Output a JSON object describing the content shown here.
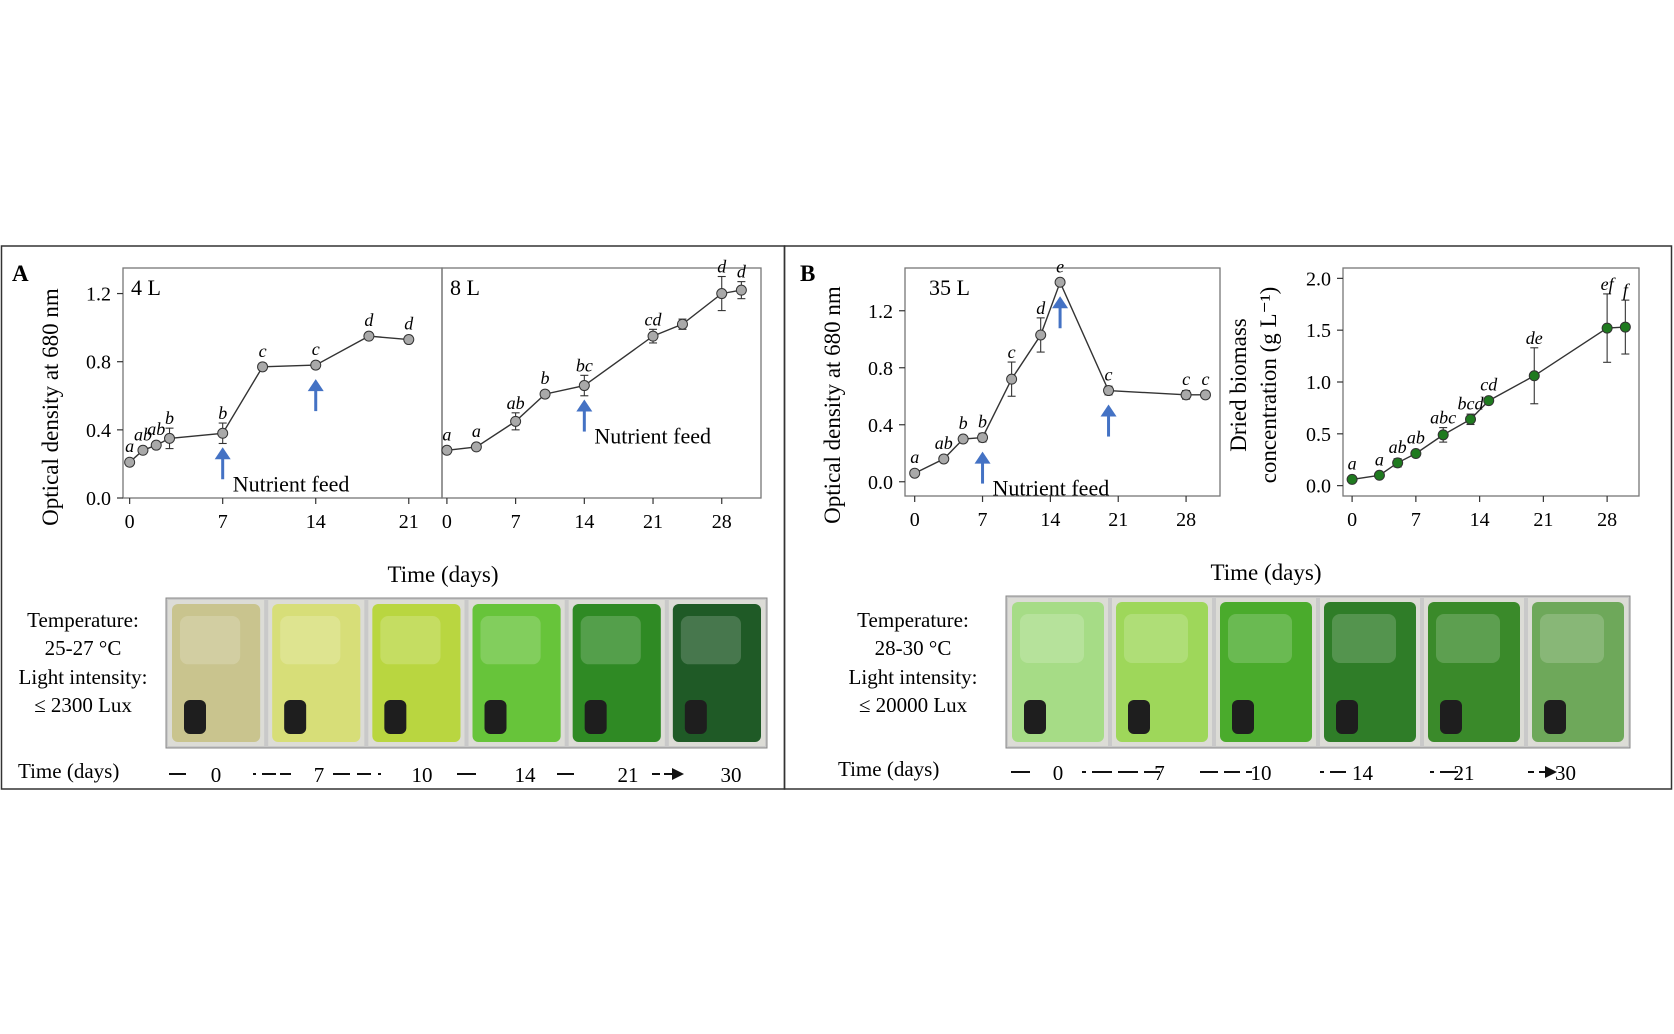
{
  "panels": {
    "a": {
      "letter": "A",
      "ylabel": "Optical density at 680 nm",
      "xlabel": "Time (days)",
      "temp_label": "Temperature:",
      "temp_value": "25-27 °C",
      "light_label": "Light intensity:",
      "light_value": "≤ 2300 Lux",
      "timeline_label": "Time (days)",
      "timeline_days": [
        "0",
        "7",
        "10",
        "14",
        "21",
        "30"
      ],
      "photo_colors": [
        "#c9c48e",
        "#d7de78",
        "#b9d640",
        "#67c43a",
        "#2f8a24",
        "#1f5a26"
      ]
    },
    "b": {
      "letter": "B",
      "ylabel": "Optical density at 680 nm",
      "ylabel2_line1": "Dried biomass",
      "ylabel2_line2": "concentration (g L⁻¹)",
      "xlabel": "Time (days)",
      "temp_label": "Temperature:",
      "temp_value": "28-30 °C",
      "light_label": "Light intensity:",
      "light_value": "≤ 20000 Lux",
      "timeline_label": "Time (days)",
      "timeline_days": [
        "0",
        "7",
        "10",
        "14",
        "21",
        "30"
      ],
      "photo_colors": [
        "#a6dc86",
        "#9ed75a",
        "#4aab2c",
        "#2f7d28",
        "#3a8a2a",
        "#6ea85a"
      ]
    }
  },
  "chart_data": [
    {
      "type": "line",
      "subplot_label": "4 L",
      "x": [
        0,
        1,
        2,
        3,
        7,
        10,
        14,
        18,
        21
      ],
      "y": [
        0.21,
        0.28,
        0.31,
        0.35,
        0.38,
        0.77,
        0.78,
        0.95,
        0.93
      ],
      "error": [
        0.02,
        0.02,
        0.02,
        0.06,
        0.06,
        0.02,
        0.02,
        0.02,
        0.02
      ],
      "letters": [
        "a",
        "ab",
        "ab",
        "b",
        "b",
        "c",
        "c",
        "d",
        "d"
      ],
      "xticks": [
        0,
        7,
        14,
        21
      ],
      "yticks": [
        0.0,
        0.4,
        0.8,
        1.2
      ],
      "xlim": [
        -0.5,
        23.5
      ],
      "ylim": [
        0,
        1.35
      ],
      "marker_color": "#a9a9a9",
      "arrows": [
        {
          "x": 7,
          "label": "Nutrient feed"
        },
        {
          "x": 14,
          "label": ""
        }
      ]
    },
    {
      "type": "line",
      "subplot_label": "8 L",
      "x": [
        0,
        3,
        7,
        10,
        14,
        21,
        24,
        28,
        30
      ],
      "y": [
        0.28,
        0.3,
        0.45,
        0.61,
        0.66,
        0.95,
        1.02,
        1.2,
        1.22
      ],
      "error": [
        0.02,
        0.02,
        0.05,
        0.02,
        0.06,
        0.04,
        0.03,
        0.1,
        0.05
      ],
      "letters": [
        "a",
        "a",
        "ab",
        "b",
        "bc",
        "cd",
        "",
        "d",
        "d"
      ],
      "xticks": [
        0,
        7,
        14,
        21,
        28
      ],
      "yticks": [
        0.0,
        0.4,
        0.8,
        1.2
      ],
      "xlim": [
        -0.5,
        32
      ],
      "ylim": [
        0,
        1.35
      ],
      "marker_color": "#a9a9a9",
      "arrows": [
        {
          "x": 14,
          "label": "Nutrient feed"
        }
      ]
    },
    {
      "type": "line",
      "subplot_label": "35 L",
      "x": [
        0,
        3,
        5,
        7,
        10,
        13,
        15,
        20,
        28,
        30
      ],
      "y": [
        0.06,
        0.16,
        0.3,
        0.31,
        0.72,
        1.03,
        1.4,
        0.64,
        0.61,
        0.61
      ],
      "error": [
        0.01,
        0.02,
        0.02,
        0.03,
        0.12,
        0.12,
        0.02,
        0.03,
        0.03,
        0.02
      ],
      "letters": [
        "a",
        "ab",
        "b",
        "b",
        "c",
        "d",
        "e",
        "c",
        "c",
        "c"
      ],
      "xticks": [
        0,
        7,
        14,
        21,
        28
      ],
      "yticks": [
        0.0,
        0.4,
        0.8,
        1.2
      ],
      "xlim": [
        -1,
        31.5
      ],
      "ylim": [
        -0.1,
        1.5
      ],
      "marker_color": "#a9a9a9",
      "arrows": [
        {
          "x": 7,
          "label": "Nutrient feed"
        },
        {
          "x": 15,
          "label": ""
        },
        {
          "x": 20,
          "label": ""
        }
      ]
    },
    {
      "type": "line",
      "subplot_label": "",
      "x": [
        0,
        3,
        5,
        7,
        10,
        13,
        15,
        20,
        28,
        30
      ],
      "y": [
        0.06,
        0.1,
        0.22,
        0.31,
        0.49,
        0.64,
        0.82,
        1.06,
        1.52,
        1.53
      ],
      "error": [
        0.02,
        0.02,
        0.04,
        0.03,
        0.07,
        0.05,
        0.03,
        0.27,
        0.33,
        0.26
      ],
      "letters": [
        "a",
        "a",
        "ab",
        "ab",
        "abc",
        "bcd",
        "cd",
        "de",
        "ef",
        "f"
      ],
      "xticks": [
        0,
        7,
        14,
        21,
        28
      ],
      "yticks": [
        0.0,
        0.5,
        1.0,
        1.5,
        2.0
      ],
      "xlim": [
        -1,
        31.5
      ],
      "ylim": [
        -0.1,
        2.1
      ],
      "marker_color": "#1f7a1f",
      "arrows": []
    }
  ]
}
